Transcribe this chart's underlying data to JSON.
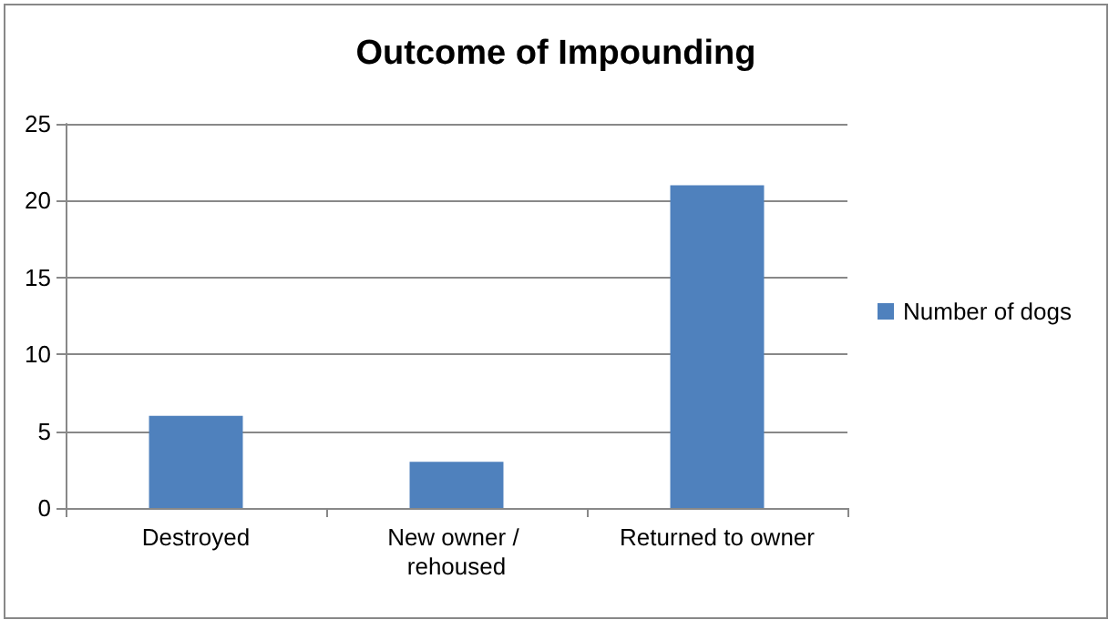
{
  "chart_data": {
    "type": "bar",
    "title": "Outcome of Impounding",
    "categories": [
      "Destroyed",
      "New owner / rehoused",
      "Returned to owner"
    ],
    "series": [
      {
        "name": "Number of dogs",
        "color": "#4f81bd",
        "values": [
          6,
          3,
          21
        ]
      }
    ],
    "ylim": [
      0,
      25
    ],
    "yticks": [
      0,
      5,
      10,
      15,
      20,
      25
    ],
    "grid": "y",
    "legend": "right"
  }
}
